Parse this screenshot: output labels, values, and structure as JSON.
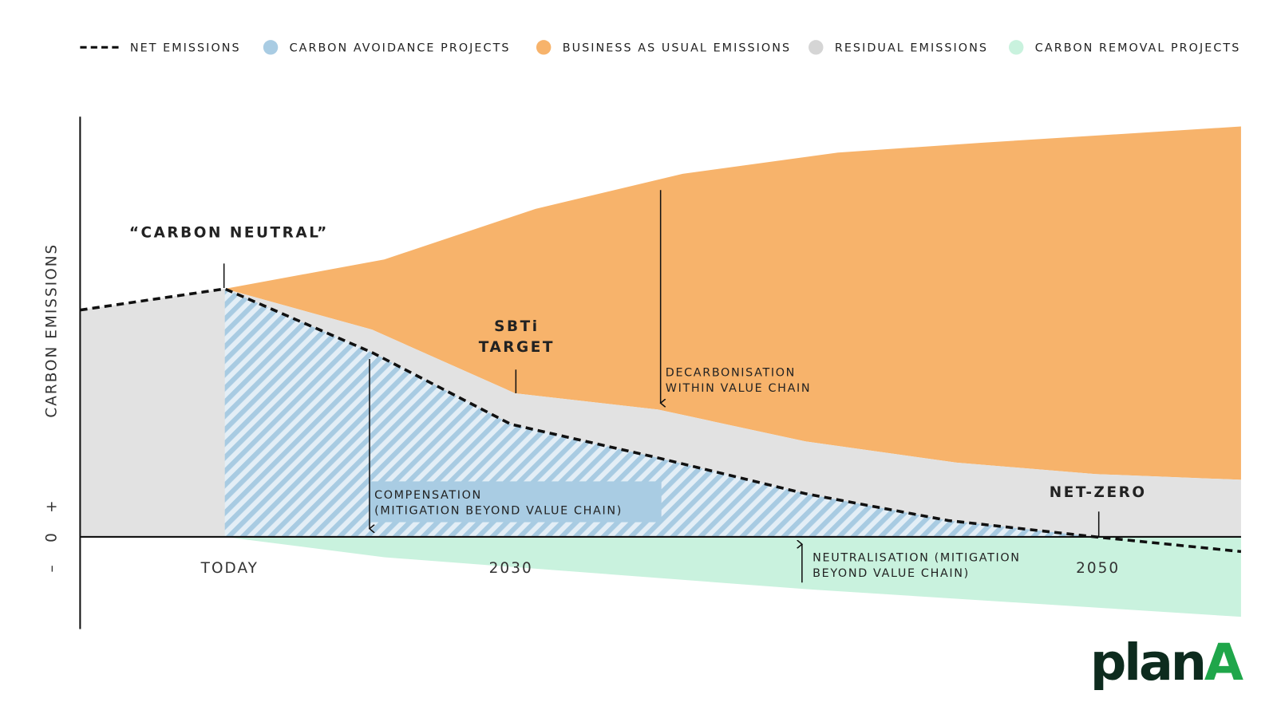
{
  "legend": [
    "NET EMISSIONS",
    "CARBON AVOIDANCE PROJECTS",
    "BUSINESS AS USUAL EMISSIONS",
    "RESIDUAL EMISSIONS",
    "CARBON REMOVAL PROJECTS"
  ],
  "y_axis": {
    "label": "CARBON EMISSIONS",
    "signs": [
      "+",
      "0",
      "–"
    ]
  },
  "x_labels": [
    "TODAY",
    "2030",
    "2050"
  ],
  "annotations": {
    "carbon_neutral": "“CARBON NEUTRAL”",
    "sbti_target": [
      "SBTi",
      "TARGET"
    ],
    "decarbonisation": [
      "DECARBONISATION",
      "WITHIN VALUE CHAIN"
    ],
    "compensation": [
      "COMPENSATION",
      "(MITIGATION BEYOND VALUE CHAIN)"
    ],
    "neutralisation": [
      "NEUTRALISATION (MITIGATION",
      "BEYOND VALUE CHAIN)"
    ],
    "net_zero": "NET-ZERO"
  },
  "logo": [
    "plan",
    "A"
  ]
}
